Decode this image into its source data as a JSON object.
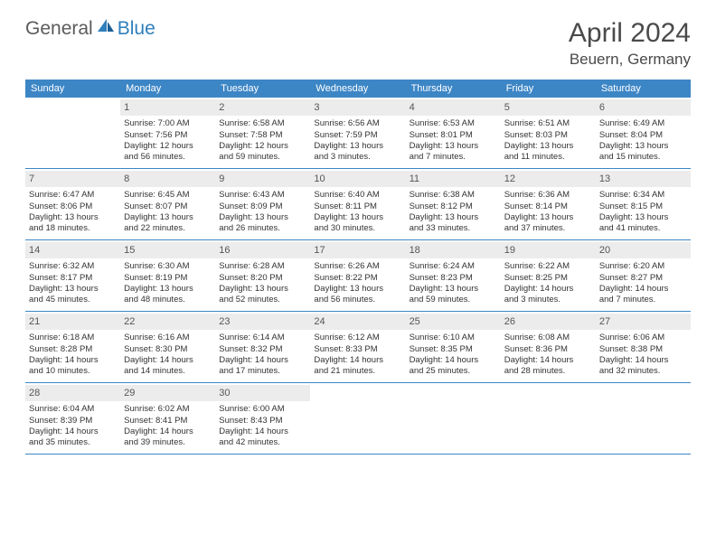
{
  "brand": {
    "word1": "General",
    "word2": "Blue"
  },
  "title": "April 2024",
  "location": "Beuern, Germany",
  "colors": {
    "headerBar": "#3d86c6",
    "headerText": "#ffffff",
    "dayNumBg": "#ececec",
    "rowBorder": "#3d86c6",
    "brandGray": "#5b5b5b",
    "brandBlue": "#2f7fbc",
    "bodyText": "#333333"
  },
  "dow": [
    "Sunday",
    "Monday",
    "Tuesday",
    "Wednesday",
    "Thursday",
    "Friday",
    "Saturday"
  ],
  "weeks": [
    [
      null,
      {
        "n": "1",
        "sr": "7:00 AM",
        "ss": "7:56 PM",
        "d1": "12 hours",
        "d2": "and 56 minutes."
      },
      {
        "n": "2",
        "sr": "6:58 AM",
        "ss": "7:58 PM",
        "d1": "12 hours",
        "d2": "and 59 minutes."
      },
      {
        "n": "3",
        "sr": "6:56 AM",
        "ss": "7:59 PM",
        "d1": "13 hours",
        "d2": "and 3 minutes."
      },
      {
        "n": "4",
        "sr": "6:53 AM",
        "ss": "8:01 PM",
        "d1": "13 hours",
        "d2": "and 7 minutes."
      },
      {
        "n": "5",
        "sr": "6:51 AM",
        "ss": "8:03 PM",
        "d1": "13 hours",
        "d2": "and 11 minutes."
      },
      {
        "n": "6",
        "sr": "6:49 AM",
        "ss": "8:04 PM",
        "d1": "13 hours",
        "d2": "and 15 minutes."
      }
    ],
    [
      {
        "n": "7",
        "sr": "6:47 AM",
        "ss": "8:06 PM",
        "d1": "13 hours",
        "d2": "and 18 minutes."
      },
      {
        "n": "8",
        "sr": "6:45 AM",
        "ss": "8:07 PM",
        "d1": "13 hours",
        "d2": "and 22 minutes."
      },
      {
        "n": "9",
        "sr": "6:43 AM",
        "ss": "8:09 PM",
        "d1": "13 hours",
        "d2": "and 26 minutes."
      },
      {
        "n": "10",
        "sr": "6:40 AM",
        "ss": "8:11 PM",
        "d1": "13 hours",
        "d2": "and 30 minutes."
      },
      {
        "n": "11",
        "sr": "6:38 AM",
        "ss": "8:12 PM",
        "d1": "13 hours",
        "d2": "and 33 minutes."
      },
      {
        "n": "12",
        "sr": "6:36 AM",
        "ss": "8:14 PM",
        "d1": "13 hours",
        "d2": "and 37 minutes."
      },
      {
        "n": "13",
        "sr": "6:34 AM",
        "ss": "8:15 PM",
        "d1": "13 hours",
        "d2": "and 41 minutes."
      }
    ],
    [
      {
        "n": "14",
        "sr": "6:32 AM",
        "ss": "8:17 PM",
        "d1": "13 hours",
        "d2": "and 45 minutes."
      },
      {
        "n": "15",
        "sr": "6:30 AM",
        "ss": "8:19 PM",
        "d1": "13 hours",
        "d2": "and 48 minutes."
      },
      {
        "n": "16",
        "sr": "6:28 AM",
        "ss": "8:20 PM",
        "d1": "13 hours",
        "d2": "and 52 minutes."
      },
      {
        "n": "17",
        "sr": "6:26 AM",
        "ss": "8:22 PM",
        "d1": "13 hours",
        "d2": "and 56 minutes."
      },
      {
        "n": "18",
        "sr": "6:24 AM",
        "ss": "8:23 PM",
        "d1": "13 hours",
        "d2": "and 59 minutes."
      },
      {
        "n": "19",
        "sr": "6:22 AM",
        "ss": "8:25 PM",
        "d1": "14 hours",
        "d2": "and 3 minutes."
      },
      {
        "n": "20",
        "sr": "6:20 AM",
        "ss": "8:27 PM",
        "d1": "14 hours",
        "d2": "and 7 minutes."
      }
    ],
    [
      {
        "n": "21",
        "sr": "6:18 AM",
        "ss": "8:28 PM",
        "d1": "14 hours",
        "d2": "and 10 minutes."
      },
      {
        "n": "22",
        "sr": "6:16 AM",
        "ss": "8:30 PM",
        "d1": "14 hours",
        "d2": "and 14 minutes."
      },
      {
        "n": "23",
        "sr": "6:14 AM",
        "ss": "8:32 PM",
        "d1": "14 hours",
        "d2": "and 17 minutes."
      },
      {
        "n": "24",
        "sr": "6:12 AM",
        "ss": "8:33 PM",
        "d1": "14 hours",
        "d2": "and 21 minutes."
      },
      {
        "n": "25",
        "sr": "6:10 AM",
        "ss": "8:35 PM",
        "d1": "14 hours",
        "d2": "and 25 minutes."
      },
      {
        "n": "26",
        "sr": "6:08 AM",
        "ss": "8:36 PM",
        "d1": "14 hours",
        "d2": "and 28 minutes."
      },
      {
        "n": "27",
        "sr": "6:06 AM",
        "ss": "8:38 PM",
        "d1": "14 hours",
        "d2": "and 32 minutes."
      }
    ],
    [
      {
        "n": "28",
        "sr": "6:04 AM",
        "ss": "8:39 PM",
        "d1": "14 hours",
        "d2": "and 35 minutes."
      },
      {
        "n": "29",
        "sr": "6:02 AM",
        "ss": "8:41 PM",
        "d1": "14 hours",
        "d2": "and 39 minutes."
      },
      {
        "n": "30",
        "sr": "6:00 AM",
        "ss": "8:43 PM",
        "d1": "14 hours",
        "d2": "and 42 minutes."
      },
      null,
      null,
      null,
      null
    ]
  ],
  "labels": {
    "sunrise": "Sunrise:",
    "sunset": "Sunset:",
    "daylight": "Daylight:"
  }
}
